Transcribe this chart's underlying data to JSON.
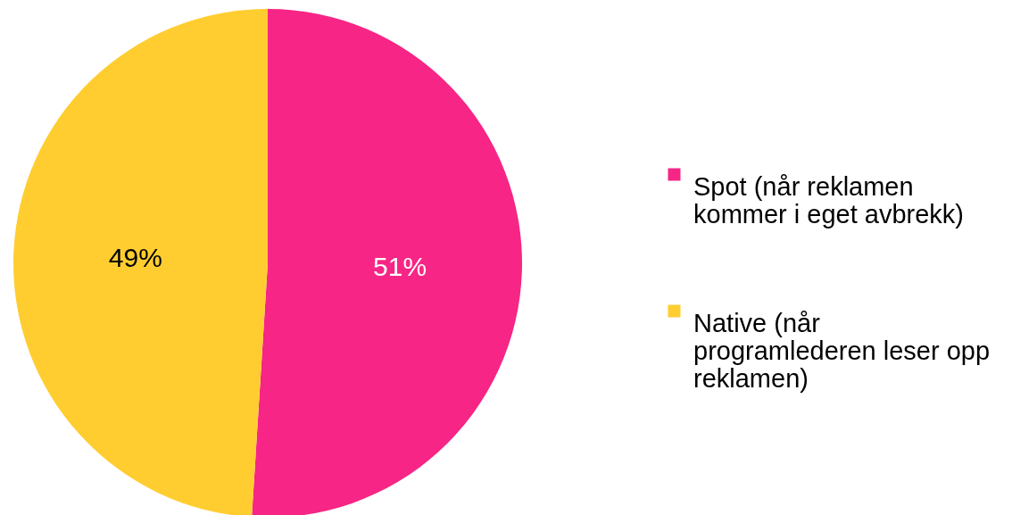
{
  "chart_data": {
    "type": "pie",
    "categories": [
      "Spot (når reklamen kommer i eget avbrekk)",
      "Native (når programlederen leser opp reklamen)"
    ],
    "values": [
      51,
      49
    ],
    "value_labels": [
      "51%",
      "49%"
    ],
    "colors": [
      "#f72585",
      "#ffcd30"
    ],
    "legend": "right"
  }
}
